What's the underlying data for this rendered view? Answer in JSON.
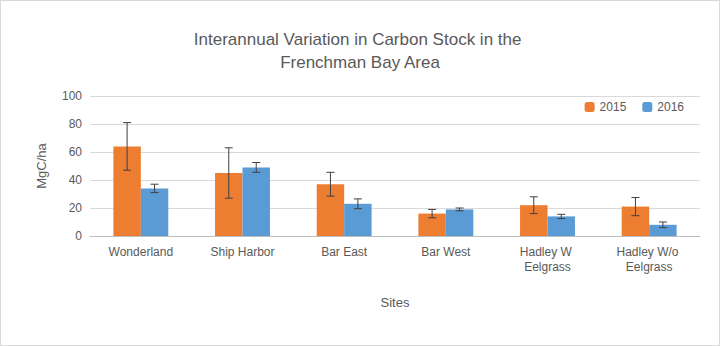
{
  "chart_data": {
    "type": "bar",
    "title": "Interannual Variation in Carbon Stock in the Frenchman Bay Area",
    "x_label": "Sites",
    "y_label": "MgC/ha",
    "categories": [
      "Wonderland",
      "Ship Harbor",
      "Bar East",
      "Bar West",
      "Hadley W Eelgrass",
      "Hadley W/o Eelgrass"
    ],
    "series": [
      {
        "name": "2015",
        "color": "#ED7D31",
        "values": [
          64,
          45,
          37,
          16,
          22,
          21
        ],
        "errors": [
          17,
          18,
          8.5,
          3,
          6,
          6.5
        ]
      },
      {
        "name": "2016",
        "color": "#5B9BD5",
        "values": [
          34,
          49,
          23,
          19,
          14,
          8
        ],
        "errors": [
          3,
          3.5,
          3.5,
          1,
          1.5,
          2
        ]
      }
    ],
    "ylim": [
      0,
      100
    ],
    "yticks": [
      0,
      20,
      40,
      60,
      80,
      100
    ],
    "grid": true,
    "legend": "top-right"
  }
}
